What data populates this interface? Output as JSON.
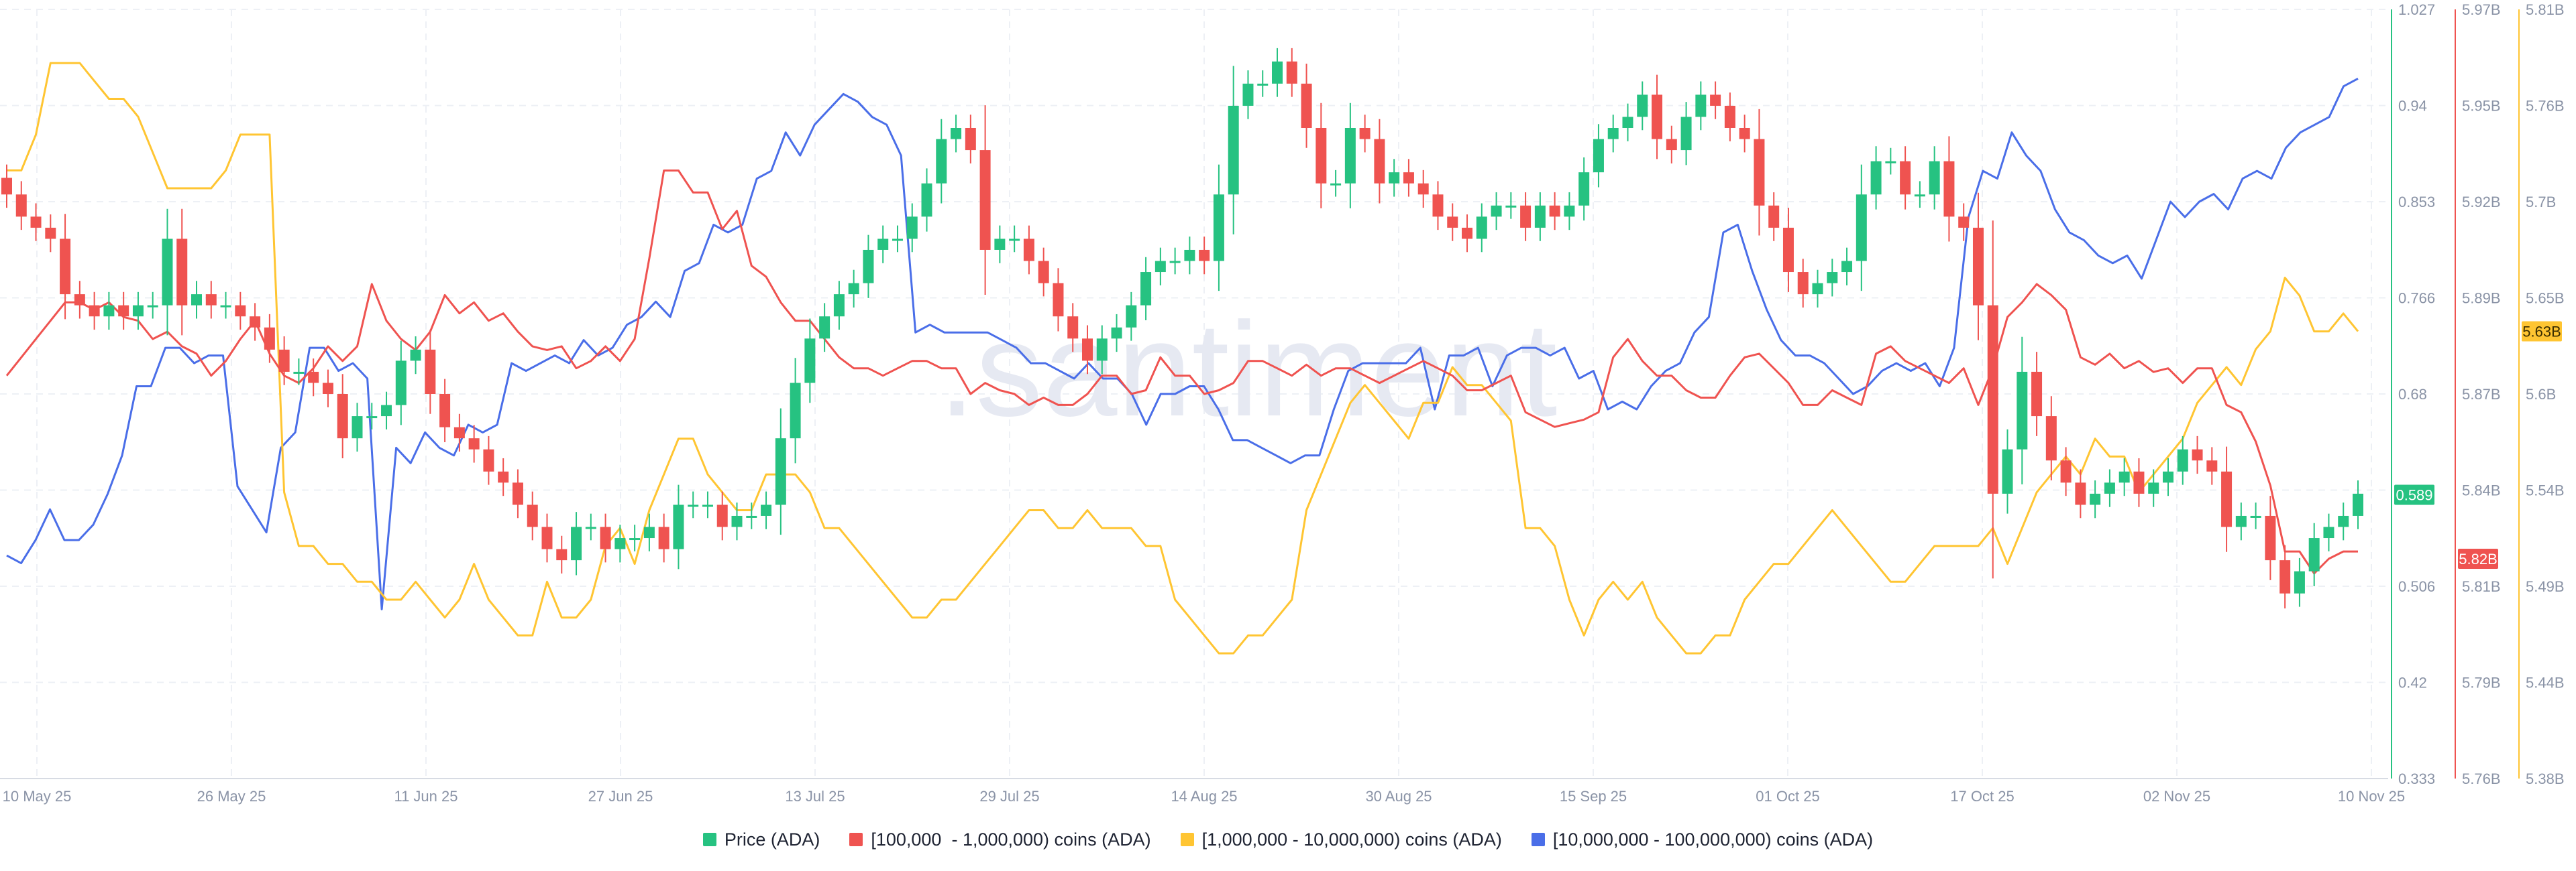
{
  "chart_data": {
    "type": "candlestick+line",
    "watermark": ".santiment",
    "x_tick_labels": [
      "10 May 25",
      "26 May 25",
      "11 Jun 25",
      "27 Jun 25",
      "13 Jul 25",
      "29 Jul 25",
      "14 Aug 25",
      "30 Aug 25",
      "15 Sep 25",
      "01 Oct 25",
      "17 Oct 25",
      "02 Nov 25",
      "10 Nov 25"
    ],
    "axes": [
      {
        "name": "price",
        "color": "#26c281",
        "ylim": [
          0.333,
          1.027
        ],
        "ticks": [
          "1.027",
          "0.94",
          "0.853",
          "0.766",
          "0.68",
          "0.589",
          "0.506",
          "0.42",
          "0.333"
        ],
        "current": "0.589"
      },
      {
        "name": "100k-1m",
        "color": "#ef5350",
        "ylim": [
          5.76,
          5.97
        ],
        "unit": "B",
        "ticks": [
          "5.97B",
          "5.95B",
          "5.92B",
          "5.89B",
          "5.87B",
          "5.84B",
          "5.81B",
          "5.79B",
          "5.76B"
        ],
        "current": "5.82B"
      },
      {
        "name": "1m-10m",
        "color": "#ffc532",
        "ylim": [
          5.38,
          5.81
        ],
        "unit": "B",
        "ticks": [
          "5.81B",
          "5.76B",
          "5.7B",
          "5.65B",
          "5.6B",
          "5.54B",
          "5.49B",
          "5.44B",
          "5.38B"
        ],
        "current": "5.63B"
      }
    ],
    "legend": [
      {
        "label": "Price (ADA)",
        "color": "#26c281"
      },
      {
        "label": "[100,000  - 1,000,000) coins (ADA)",
        "color": "#ef5350"
      },
      {
        "label": "[1,000,000 - 10,000,000) coins (ADA)",
        "color": "#ffc532"
      },
      {
        "label": "[10,000,000 - 100,000,000) coins (ADA)",
        "color": "#4a6ee8"
      }
    ],
    "candles_close": [
      0.86,
      0.84,
      0.83,
      0.82,
      0.77,
      0.76,
      0.75,
      0.76,
      0.75,
      0.76,
      0.76,
      0.82,
      0.76,
      0.77,
      0.76,
      0.76,
      0.75,
      0.74,
      0.72,
      0.7,
      0.7,
      0.69,
      0.68,
      0.64,
      0.66,
      0.66,
      0.67,
      0.71,
      0.72,
      0.68,
      0.65,
      0.64,
      0.63,
      0.61,
      0.6,
      0.58,
      0.56,
      0.54,
      0.53,
      0.56,
      0.56,
      0.54,
      0.55,
      0.55,
      0.56,
      0.54,
      0.58,
      0.58,
      0.58,
      0.56,
      0.57,
      0.57,
      0.58,
      0.64,
      0.69,
      0.73,
      0.75,
      0.77,
      0.78,
      0.81,
      0.82,
      0.82,
      0.84,
      0.87,
      0.91,
      0.92,
      0.9,
      0.81,
      0.82,
      0.82,
      0.8,
      0.78,
      0.75,
      0.73,
      0.71,
      0.73,
      0.74,
      0.76,
      0.79,
      0.8,
      0.8,
      0.81,
      0.8,
      0.86,
      0.94,
      0.96,
      0.96,
      0.98,
      0.96,
      0.92,
      0.87,
      0.87,
      0.92,
      0.91,
      0.87,
      0.88,
      0.87,
      0.86,
      0.84,
      0.83,
      0.82,
      0.84,
      0.85,
      0.85,
      0.83,
      0.85,
      0.84,
      0.85,
      0.88,
      0.91,
      0.92,
      0.93,
      0.95,
      0.91,
      0.9,
      0.93,
      0.95,
      0.94,
      0.92,
      0.91,
      0.85,
      0.83,
      0.79,
      0.77,
      0.78,
      0.79,
      0.8,
      0.86,
      0.89,
      0.89,
      0.86,
      0.86,
      0.89,
      0.84,
      0.83,
      0.76,
      0.59,
      0.63,
      0.7,
      0.66,
      0.62,
      0.6,
      0.58,
      0.59,
      0.6,
      0.61,
      0.59,
      0.6,
      0.61,
      0.63,
      0.62,
      0.61,
      0.56,
      0.57,
      0.57,
      0.53,
      0.5,
      0.52,
      0.55,
      0.56,
      0.57,
      0.59
    ],
    "series_100k_1m_B": [
      5.87,
      5.875,
      5.88,
      5.885,
      5.89,
      5.89,
      5.888,
      5.89,
      5.886,
      5.885,
      5.88,
      5.882,
      5.878,
      5.876,
      5.87,
      5.874,
      5.88,
      5.885,
      5.876,
      5.87,
      5.868,
      5.872,
      5.878,
      5.874,
      5.878,
      5.895,
      5.885,
      5.88,
      5.877,
      5.882,
      5.892,
      5.887,
      5.89,
      5.885,
      5.887,
      5.882,
      5.878,
      5.877,
      5.878,
      5.872,
      5.874,
      5.878,
      5.874,
      5.88,
      5.902,
      5.926,
      5.926,
      5.92,
      5.92,
      5.91,
      5.915,
      5.9,
      5.897,
      5.89,
      5.885,
      5.885,
      5.88,
      5.875,
      5.872,
      5.872,
      5.87,
      5.872,
      5.874,
      5.874,
      5.872,
      5.872,
      5.865,
      5.868,
      5.866,
      5.865,
      5.862,
      5.864,
      5.862,
      5.862,
      5.865,
      5.87,
      5.87,
      5.865,
      5.866,
      5.875,
      5.87,
      5.87,
      5.865,
      5.866,
      5.868,
      5.874,
      5.874,
      5.872,
      5.87,
      5.873,
      5.87,
      5.872,
      5.872,
      5.87,
      5.868,
      5.87,
      5.872,
      5.874,
      5.872,
      5.87,
      5.866,
      5.866,
      5.868,
      5.87,
      5.86,
      5.858,
      5.856,
      5.857,
      5.858,
      5.86,
      5.875,
      5.88,
      5.874,
      5.87,
      5.87,
      5.866,
      5.864,
      5.864,
      5.87,
      5.875,
      5.876,
      5.872,
      5.868,
      5.862,
      5.862,
      5.866,
      5.864,
      5.862,
      5.876,
      5.878,
      5.874,
      5.872,
      5.87,
      5.868,
      5.872,
      5.862,
      5.872,
      5.886,
      5.89,
      5.895,
      5.892,
      5.888,
      5.875,
      5.873,
      5.876,
      5.872,
      5.874,
      5.871,
      5.872,
      5.868,
      5.872,
      5.872,
      5.862,
      5.86,
      5.852,
      5.84,
      5.822,
      5.822,
      5.816,
      5.82,
      5.822,
      5.822
    ],
    "series_1m_10m_B": [
      5.72,
      5.72,
      5.74,
      5.78,
      5.78,
      5.78,
      5.77,
      5.76,
      5.76,
      5.75,
      5.73,
      5.71,
      5.71,
      5.71,
      5.71,
      5.72,
      5.74,
      5.74,
      5.74,
      5.54,
      5.51,
      5.51,
      5.5,
      5.5,
      5.49,
      5.49,
      5.48,
      5.48,
      5.49,
      5.48,
      5.47,
      5.48,
      5.5,
      5.48,
      5.47,
      5.46,
      5.46,
      5.49,
      5.47,
      5.47,
      5.48,
      5.51,
      5.52,
      5.5,
      5.53,
      5.55,
      5.57,
      5.57,
      5.55,
      5.54,
      5.53,
      5.53,
      5.55,
      5.55,
      5.55,
      5.54,
      5.52,
      5.52,
      5.51,
      5.5,
      5.49,
      5.48,
      5.47,
      5.47,
      5.48,
      5.48,
      5.49,
      5.5,
      5.51,
      5.52,
      5.53,
      5.53,
      5.52,
      5.52,
      5.53,
      5.52,
      5.52,
      5.52,
      5.51,
      5.51,
      5.48,
      5.47,
      5.46,
      5.45,
      5.45,
      5.46,
      5.46,
      5.47,
      5.48,
      5.53,
      5.55,
      5.57,
      5.59,
      5.6,
      5.59,
      5.58,
      5.57,
      5.59,
      5.59,
      5.61,
      5.6,
      5.6,
      5.59,
      5.58,
      5.52,
      5.52,
      5.51,
      5.48,
      5.46,
      5.48,
      5.49,
      5.48,
      5.49,
      5.47,
      5.46,
      5.45,
      5.45,
      5.46,
      5.46,
      5.48,
      5.49,
      5.5,
      5.5,
      5.51,
      5.52,
      5.53,
      5.52,
      5.51,
      5.5,
      5.49,
      5.49,
      5.5,
      5.51,
      5.51,
      5.51,
      5.51,
      5.52,
      5.5,
      5.52,
      5.54,
      5.55,
      5.56,
      5.55,
      5.57,
      5.56,
      5.56,
      5.54,
      5.55,
      5.56,
      5.57,
      5.59,
      5.6,
      5.61,
      5.6,
      5.62,
      5.63,
      5.66,
      5.65,
      5.63,
      5.63,
      5.64,
      5.63
    ],
    "series_10m_100m_norm": [
      0.29,
      0.28,
      0.31,
      0.35,
      0.31,
      0.31,
      0.33,
      0.37,
      0.42,
      0.51,
      0.51,
      0.56,
      0.56,
      0.54,
      0.55,
      0.55,
      0.38,
      0.35,
      0.32,
      0.43,
      0.45,
      0.56,
      0.56,
      0.53,
      0.54,
      0.52,
      0.22,
      0.43,
      0.41,
      0.45,
      0.43,
      0.42,
      0.46,
      0.45,
      0.46,
      0.54,
      0.53,
      0.54,
      0.55,
      0.54,
      0.57,
      0.55,
      0.56,
      0.59,
      0.6,
      0.62,
      0.6,
      0.66,
      0.67,
      0.72,
      0.71,
      0.72,
      0.78,
      0.79,
      0.84,
      0.81,
      0.85,
      0.87,
      0.89,
      0.88,
      0.86,
      0.85,
      0.81,
      0.58,
      0.59,
      0.58,
      0.58,
      0.58,
      0.58,
      0.57,
      0.56,
      0.54,
      0.54,
      0.53,
      0.52,
      0.54,
      0.52,
      0.52,
      0.5,
      0.46,
      0.5,
      0.5,
      0.51,
      0.51,
      0.48,
      0.44,
      0.44,
      0.43,
      0.42,
      0.41,
      0.42,
      0.42,
      0.48,
      0.53,
      0.54,
      0.54,
      0.54,
      0.54,
      0.56,
      0.48,
      0.55,
      0.55,
      0.56,
      0.51,
      0.55,
      0.56,
      0.56,
      0.55,
      0.56,
      0.52,
      0.53,
      0.48,
      0.49,
      0.48,
      0.51,
      0.53,
      0.54,
      0.58,
      0.6,
      0.71,
      0.72,
      0.66,
      0.61,
      0.57,
      0.55,
      0.55,
      0.54,
      0.52,
      0.5,
      0.51,
      0.53,
      0.54,
      0.53,
      0.54,
      0.51,
      0.56,
      0.73,
      0.79,
      0.78,
      0.84,
      0.81,
      0.79,
      0.74,
      0.71,
      0.7,
      0.68,
      0.67,
      0.68,
      0.65,
      0.7,
      0.75,
      0.73,
      0.75,
      0.76,
      0.74,
      0.78,
      0.79,
      0.78,
      0.82,
      0.84,
      0.85,
      0.86,
      0.9,
      0.91
    ]
  }
}
